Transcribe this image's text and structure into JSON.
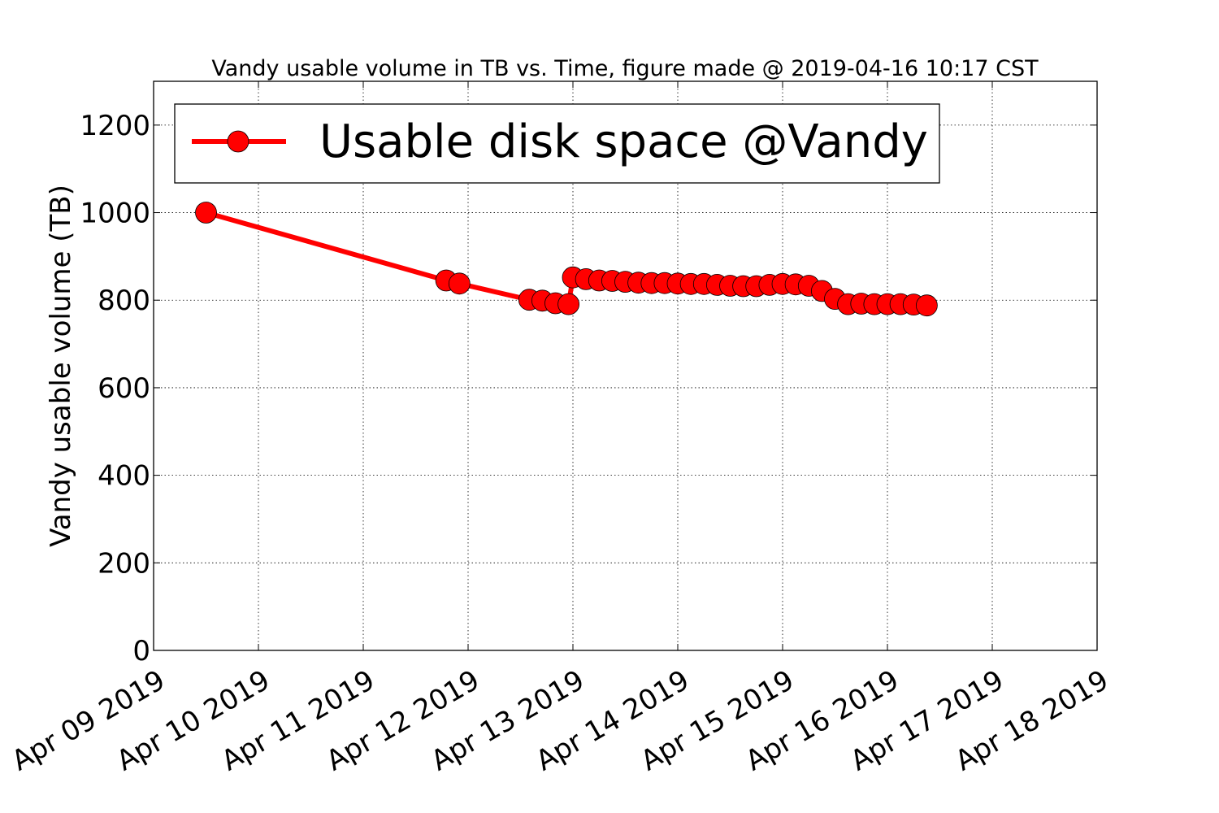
{
  "chart_data": {
    "type": "line",
    "title": "Vandy usable volume in TB vs. Time, figure made @ 2019-04-16 10:17 CST",
    "xlabel": "",
    "ylabel": "Vandy usable volume (TB)",
    "xlim": [
      "2019-04-09",
      "2019-04-18"
    ],
    "ylim": [
      0,
      1300
    ],
    "x_tick_labels": [
      "Apr 09 2019",
      "Apr 10 2019",
      "Apr 11 2019",
      "Apr 12 2019",
      "Apr 13 2019",
      "Apr 14 2019",
      "Apr 15 2019",
      "Apr 16 2019",
      "Apr 17 2019",
      "Apr 18 2019"
    ],
    "y_ticks": [
      0,
      200,
      400,
      600,
      800,
      1000,
      1200
    ],
    "y_tick_labels": [
      "0",
      "200",
      "400",
      "600",
      "800",
      "1000",
      "1200"
    ],
    "grid": true,
    "legend_position": "top-left",
    "series": [
      {
        "name": "Usable disk space @Vandy",
        "color": "#ff0000",
        "marker": "circle",
        "points": [
          {
            "x": "2019-04-09 12:00",
            "y": 1000
          },
          {
            "x": "2019-04-11 19:00",
            "y": 845
          },
          {
            "x": "2019-04-11 22:00",
            "y": 838
          },
          {
            "x": "2019-04-12 14:00",
            "y": 801
          },
          {
            "x": "2019-04-12 17:00",
            "y": 799
          },
          {
            "x": "2019-04-12 20:00",
            "y": 793
          },
          {
            "x": "2019-04-12 23:00",
            "y": 791
          },
          {
            "x": "2019-04-13 00:00",
            "y": 852
          },
          {
            "x": "2019-04-13 03:00",
            "y": 848
          },
          {
            "x": "2019-04-13 06:00",
            "y": 845
          },
          {
            "x": "2019-04-13 09:00",
            "y": 844
          },
          {
            "x": "2019-04-13 12:00",
            "y": 842
          },
          {
            "x": "2019-04-13 15:00",
            "y": 840
          },
          {
            "x": "2019-04-13 18:00",
            "y": 839
          },
          {
            "x": "2019-04-13 21:00",
            "y": 839
          },
          {
            "x": "2019-04-14 00:00",
            "y": 838
          },
          {
            "x": "2019-04-14 03:00",
            "y": 837
          },
          {
            "x": "2019-04-14 06:00",
            "y": 837
          },
          {
            "x": "2019-04-14 09:00",
            "y": 835
          },
          {
            "x": "2019-04-14 12:00",
            "y": 833
          },
          {
            "x": "2019-04-14 15:00",
            "y": 832
          },
          {
            "x": "2019-04-14 18:00",
            "y": 832
          },
          {
            "x": "2019-04-14 21:00",
            "y": 835
          },
          {
            "x": "2019-04-15 00:00",
            "y": 837
          },
          {
            "x": "2019-04-15 03:00",
            "y": 836
          },
          {
            "x": "2019-04-15 06:00",
            "y": 833
          },
          {
            "x": "2019-04-15 09:00",
            "y": 821
          },
          {
            "x": "2019-04-15 12:00",
            "y": 803
          },
          {
            "x": "2019-04-15 15:00",
            "y": 791
          },
          {
            "x": "2019-04-15 18:00",
            "y": 792
          },
          {
            "x": "2019-04-15 21:00",
            "y": 791
          },
          {
            "x": "2019-04-16 00:00",
            "y": 791
          },
          {
            "x": "2019-04-16 03:00",
            "y": 791
          },
          {
            "x": "2019-04-16 06:00",
            "y": 790
          },
          {
            "x": "2019-04-16 09:00",
            "y": 788
          }
        ]
      }
    ]
  }
}
